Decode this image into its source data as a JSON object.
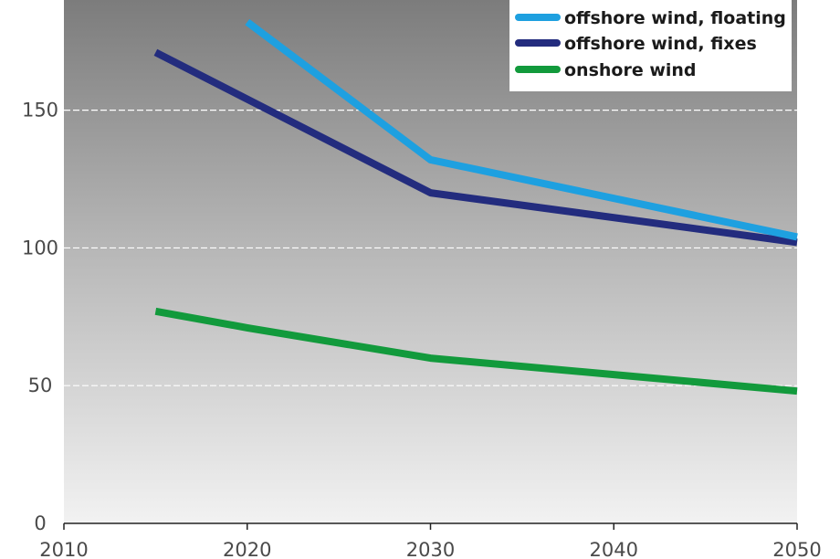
{
  "chart_data": {
    "type": "line",
    "title": "",
    "xlabel": "",
    "ylabel": "",
    "xlim": [
      2010,
      2050
    ],
    "ylim": [
      0,
      190
    ],
    "x_ticks": [
      "2010",
      "2020",
      "2030",
      "2040",
      "2050"
    ],
    "y_ticks": [
      "0",
      "50",
      "100",
      "150"
    ],
    "grid": "horizontal dashed",
    "legend_position": "top-right",
    "series": [
      {
        "name": "offshore wind, floating",
        "color": "#1ea0e0",
        "points": [
          [
            2020,
            182
          ],
          [
            2030,
            132
          ],
          [
            2050,
            104
          ]
        ]
      },
      {
        "name": "offshore wind, fixes",
        "color": "#232c7e",
        "points": [
          [
            2015,
            171
          ],
          [
            2030,
            120
          ],
          [
            2050,
            102
          ]
        ]
      },
      {
        "name": "onshore wind",
        "color": "#129a3c",
        "points": [
          [
            2015,
            77
          ],
          [
            2020,
            71
          ],
          [
            2030,
            60
          ],
          [
            2040,
            54
          ],
          [
            2050,
            48
          ]
        ]
      }
    ]
  }
}
